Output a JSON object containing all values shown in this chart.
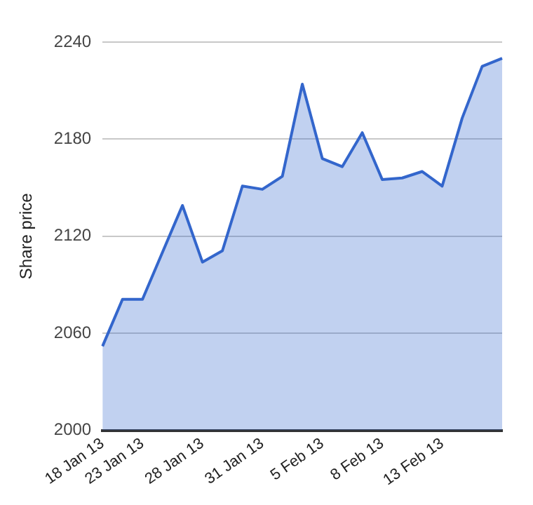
{
  "chart_data": {
    "type": "area",
    "ylabel": "Share price",
    "categories": [
      "18 Jan 13",
      null,
      "23 Jan 13",
      null,
      null,
      "28 Jan 13",
      null,
      null,
      "31 Jan 13",
      null,
      null,
      "5 Feb 13",
      null,
      null,
      "8 Feb 13",
      null,
      null,
      "13 Feb 13",
      null,
      null,
      null
    ],
    "series": [
      {
        "color": "#3366cc",
        "values": [
          2052,
          2081,
          2081,
          2110,
          2139,
          2104,
          2111,
          2151,
          2149,
          2157,
          2214,
          2168,
          2163,
          2184,
          2155,
          2156,
          2160,
          2151,
          2193,
          2225,
          2230
        ]
      }
    ],
    "ylim": [
      2000,
      2240
    ],
    "yticks": [
      2000,
      2060,
      2120,
      2180,
      2240
    ],
    "grid": "y",
    "legend": false
  }
}
